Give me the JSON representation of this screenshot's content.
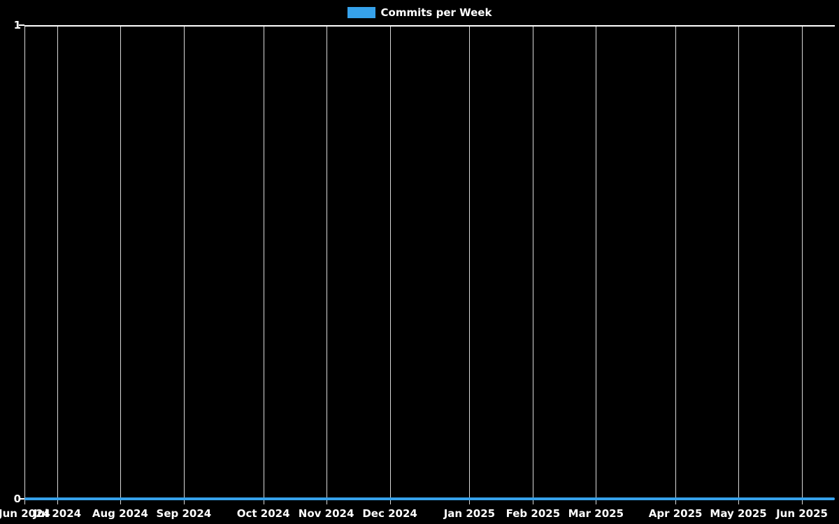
{
  "legend": {
    "items": [
      {
        "label": "Commits per Week",
        "color": "#36A2EB"
      }
    ],
    "position": "top-center"
  },
  "chart_data": {
    "type": "line",
    "title": "",
    "xlabel": "",
    "ylabel": "",
    "x_unit": "week",
    "x_range": "Jun 2024 - Jun 2025",
    "ylim": [
      0,
      1
    ],
    "grid": {
      "vertical": true,
      "horizontal": false
    },
    "background": "#000000",
    "text_color": "#ffffff",
    "grid_color": "rgba(255,255,255,0.85)",
    "series": [
      {
        "name": "Commits per Week",
        "color": "#36A2EB",
        "values": [
          0,
          0,
          0,
          0,
          0,
          0,
          0,
          0,
          0,
          0,
          0,
          0,
          0,
          0,
          0,
          0,
          0,
          0,
          0,
          0,
          0,
          0,
          0,
          0,
          0,
          0,
          0,
          0,
          0,
          0,
          0,
          0,
          0,
          0,
          0,
          0,
          0,
          0,
          0,
          0,
          0,
          0,
          0,
          0,
          0,
          0,
          0,
          0,
          0,
          0,
          0,
          0
        ]
      }
    ],
    "x_ticks": [
      {
        "label": "Jun 2024",
        "pos": 0.0
      },
      {
        "label": "Jul 2024",
        "pos": 0.0405
      },
      {
        "label": "Aug 2024",
        "pos": 0.1181
      },
      {
        "label": "Sep 2024",
        "pos": 0.1966
      },
      {
        "label": "Oct 2024",
        "pos": 0.2948
      },
      {
        "label": "Nov 2024",
        "pos": 0.3724
      },
      {
        "label": "Dec 2024",
        "pos": 0.4509
      },
      {
        "label": "Jan 2025",
        "pos": 0.5491
      },
      {
        "label": "Feb 2025",
        "pos": 0.6276
      },
      {
        "label": "Mar 2025",
        "pos": 0.7052
      },
      {
        "label": "Apr 2025",
        "pos": 0.8034
      },
      {
        "label": "May 2025",
        "pos": 0.881
      },
      {
        "label": "Jun 2025",
        "pos": 0.9595
      }
    ],
    "y_ticks": [
      {
        "label": "0",
        "pos": 0.0
      },
      {
        "label": "1",
        "pos": 1.0
      }
    ]
  }
}
